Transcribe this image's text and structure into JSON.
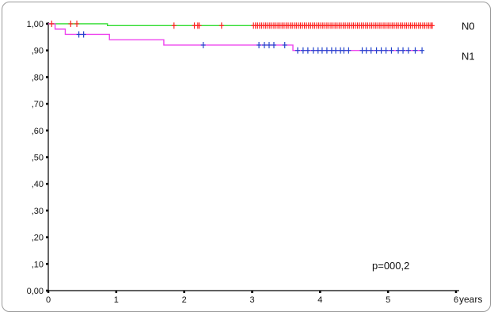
{
  "chart_data": {
    "type": "line",
    "subtype": "kaplan-meier",
    "title": "",
    "xlabel": "years",
    "ylabel": "",
    "xlim": [
      0,
      6
    ],
    "ylim": [
      0,
      1
    ],
    "x_ticks": [
      {
        "value": 0,
        "label": "0"
      },
      {
        "value": 1,
        "label": "1"
      },
      {
        "value": 2,
        "label": "2"
      },
      {
        "value": 3,
        "label": "3"
      },
      {
        "value": 4,
        "label": "4"
      },
      {
        "value": 5,
        "label": "5"
      },
      {
        "value": 6,
        "label": "6"
      }
    ],
    "y_ticks": [
      {
        "value": 0.0,
        "label": "0,00"
      },
      {
        "value": 0.1,
        "label": ",10"
      },
      {
        "value": 0.2,
        "label": ",20"
      },
      {
        "value": 0.3,
        "label": ",30"
      },
      {
        "value": 0.4,
        "label": ",40"
      },
      {
        "value": 0.5,
        "label": ",50"
      },
      {
        "value": 0.6,
        "label": ",60"
      },
      {
        "value": 0.7,
        "label": ",70"
      },
      {
        "value": 0.8,
        "label": ",80"
      },
      {
        "value": 0.9,
        "label": ",90"
      },
      {
        "value": 1.0,
        "label": "1,00"
      }
    ],
    "grid": false,
    "legend": "right (labels beside line ends)",
    "annotation": "p=000,2",
    "series": [
      {
        "name": "N0",
        "line_color": "#33dd33",
        "censor_color": "#ff2222",
        "steps": [
          [
            0,
            1.0
          ],
          [
            0.87,
            0.993
          ],
          [
            5.65,
            0.993
          ]
        ],
        "censored": [
          0.05,
          0.33,
          0.42,
          1.85,
          2.15,
          2.2,
          2.22,
          2.55,
          3.02,
          3.05,
          3.08,
          3.11,
          3.14,
          3.17,
          3.2,
          3.23,
          3.26,
          3.29,
          3.32,
          3.35,
          3.38,
          3.41,
          3.44,
          3.47,
          3.5,
          3.53,
          3.56,
          3.59,
          3.62,
          3.65,
          3.68,
          3.71,
          3.74,
          3.77,
          3.8,
          3.83,
          3.86,
          3.89,
          3.92,
          3.95,
          3.98,
          4.01,
          4.04,
          4.07,
          4.1,
          4.13,
          4.16,
          4.19,
          4.22,
          4.25,
          4.28,
          4.31,
          4.34,
          4.37,
          4.4,
          4.43,
          4.46,
          4.49,
          4.52,
          4.55,
          4.58,
          4.61,
          4.64,
          4.67,
          4.7,
          4.73,
          4.76,
          4.79,
          4.82,
          4.85,
          4.88,
          4.91,
          4.94,
          4.97,
          5.0,
          5.03,
          5.06,
          5.09,
          5.12,
          5.15,
          5.18,
          5.21,
          5.24,
          5.27,
          5.3,
          5.33,
          5.36,
          5.39,
          5.42,
          5.45,
          5.48,
          5.51,
          5.54,
          5.57,
          5.6,
          5.63,
          5.65
        ]
      },
      {
        "name": "N1",
        "line_color": "#ee44ee",
        "censor_color": "#2244cc",
        "steps": [
          [
            0,
            1.0
          ],
          [
            0.1,
            0.98
          ],
          [
            0.25,
            0.96
          ],
          [
            0.9,
            0.94
          ],
          [
            1.7,
            0.92
          ],
          [
            3.6,
            0.9
          ],
          [
            5.5,
            0.9
          ]
        ],
        "censored": [
          0.45,
          0.52,
          2.28,
          3.1,
          3.18,
          3.25,
          3.32,
          3.48,
          3.67,
          3.75,
          3.82,
          3.9,
          3.97,
          4.03,
          4.1,
          4.17,
          4.23,
          4.3,
          4.35,
          4.42,
          4.62,
          4.68,
          4.75,
          4.83,
          4.9,
          4.97,
          5.05,
          5.15,
          5.22,
          5.3,
          5.4,
          5.5
        ]
      }
    ]
  }
}
